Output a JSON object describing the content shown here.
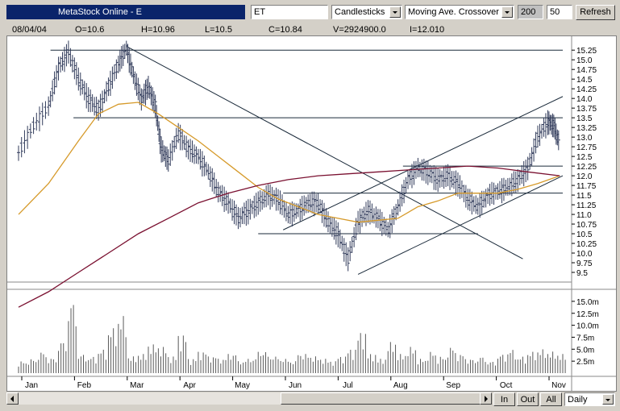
{
  "toolbar": {
    "title": "MetaStock Online - E",
    "symbol": "ET",
    "chart_style": "Candlesticks",
    "indicator": "Moving Ave. Crossover",
    "param1": "200",
    "param2": "50",
    "refresh_label": "Refresh"
  },
  "ohlc": {
    "date": "08/04/04",
    "open": "O=10.6",
    "high": "H=10.96",
    "low": "L=10.5",
    "close": "C=10.84",
    "volume": "V=2924900.0",
    "indicator": "I=12.010"
  },
  "bottom": {
    "in_label": "In",
    "out_label": "Out",
    "all_label": "All",
    "period": "Daily"
  },
  "colors": {
    "ma_short": "#d69a2a",
    "ma_long": "#7a1030",
    "candles": "#303a5a",
    "trendlines": "#1a2a3a"
  },
  "chart_data": {
    "type": "line",
    "price_axis": {
      "ylim": [
        9.25,
        15.4
      ],
      "ticks": [
        "15.25",
        "15.0",
        "14.75",
        "14.5",
        "14.25",
        "14.0",
        "13.75",
        "13.5",
        "13.25",
        "13.0",
        "12.75",
        "12.5",
        "12.25",
        "12.0",
        "11.75",
        "11.5",
        "11.25",
        "11.0",
        "10.75",
        "10.5",
        "10.25",
        "10.0",
        "9.75",
        "9.5"
      ]
    },
    "volume_axis": {
      "ylim": [
        0,
        16500000
      ],
      "ticks": [
        "15.0m",
        "12.5m",
        "10.0m",
        "7.5m",
        "5.0m",
        "2.5m"
      ]
    },
    "months": [
      "Jan",
      "Feb",
      "Mar",
      "Apr",
      "May",
      "Jun",
      "Jul",
      "Aug",
      "Sep",
      "Oct",
      "Nov"
    ],
    "series": [
      {
        "style": "ohlc-bars",
        "points": [
          [
            0,
            12.6
          ],
          [
            1.5,
            13.3
          ],
          [
            3,
            13.8
          ],
          [
            4,
            14.8
          ],
          [
            5,
            15.2
          ],
          [
            6,
            14.5
          ],
          [
            7,
            14.0
          ],
          [
            8,
            13.7
          ],
          [
            9,
            14.3
          ],
          [
            10,
            14.9
          ],
          [
            10.8,
            15.3
          ],
          [
            11.5,
            14.6
          ],
          [
            12.3,
            14.0
          ],
          [
            13,
            14.3
          ],
          [
            13.7,
            13.8
          ],
          [
            14.3,
            12.7
          ],
          [
            15,
            12.4
          ],
          [
            16,
            13.1
          ],
          [
            17,
            12.7
          ],
          [
            18,
            12.5
          ],
          [
            19,
            12.1
          ],
          [
            20,
            11.6
          ],
          [
            21,
            11.3
          ],
          [
            22,
            10.9
          ],
          [
            23,
            11.1
          ],
          [
            24,
            11.3
          ],
          [
            25,
            11.5
          ],
          [
            26,
            11.4
          ],
          [
            27,
            11.0
          ],
          [
            28,
            11.1
          ],
          [
            29,
            11.3
          ],
          [
            30,
            11.3
          ],
          [
            31,
            10.8
          ],
          [
            32,
            10.5
          ],
          [
            33,
            9.85
          ],
          [
            34,
            10.8
          ],
          [
            35,
            11.1
          ],
          [
            36,
            10.9
          ],
          [
            37,
            10.6
          ],
          [
            38,
            11.2
          ],
          [
            39,
            11.9
          ],
          [
            40,
            12.2
          ],
          [
            41,
            12.1
          ],
          [
            42,
            11.9
          ],
          [
            43,
            12.0
          ],
          [
            44,
            11.8
          ],
          [
            45,
            11.4
          ],
          [
            46,
            11.2
          ],
          [
            47,
            11.5
          ],
          [
            48,
            11.6
          ],
          [
            49,
            11.7
          ],
          [
            50,
            11.9
          ],
          [
            51,
            12.2
          ],
          [
            52,
            13.0
          ],
          [
            53,
            13.4
          ],
          [
            53.6,
            13.3
          ],
          [
            54.2,
            12.8
          ]
        ]
      },
      {
        "name": "",
        "style": "moving-average-short",
        "points": [
          [
            0,
            11.0
          ],
          [
            3,
            11.8
          ],
          [
            6,
            12.9
          ],
          [
            8,
            13.6
          ],
          [
            10,
            13.85
          ],
          [
            12,
            13.9
          ],
          [
            14,
            13.6
          ],
          [
            16,
            13.25
          ],
          [
            18,
            12.9
          ],
          [
            20,
            12.5
          ],
          [
            22,
            12.1
          ],
          [
            24,
            11.7
          ],
          [
            26,
            11.4
          ],
          [
            28,
            11.2
          ],
          [
            30,
            11.0
          ],
          [
            32,
            10.9
          ],
          [
            34,
            10.8
          ],
          [
            36,
            10.85
          ],
          [
            38,
            10.9
          ],
          [
            40,
            11.2
          ],
          [
            42,
            11.35
          ],
          [
            44,
            11.55
          ],
          [
            46,
            11.55
          ],
          [
            48,
            11.55
          ],
          [
            50,
            11.65
          ],
          [
            52,
            11.8
          ],
          [
            54.2,
            12.0
          ]
        ]
      },
      {
        "name": "",
        "style": "moving-average-long",
        "points": [
          [
            0,
            8.6
          ],
          [
            3,
            9.0
          ],
          [
            6,
            9.5
          ],
          [
            9,
            10.0
          ],
          [
            12,
            10.5
          ],
          [
            15,
            10.9
          ],
          [
            18,
            11.3
          ],
          [
            21,
            11.55
          ],
          [
            24,
            11.75
          ],
          [
            27,
            11.9
          ],
          [
            30,
            12.0
          ],
          [
            33,
            12.05
          ],
          [
            36,
            12.1
          ],
          [
            39,
            12.15
          ],
          [
            42,
            12.2
          ],
          [
            45,
            12.25
          ],
          [
            48,
            12.2
          ],
          [
            51,
            12.1
          ],
          [
            54.2,
            12.0
          ]
        ]
      }
    ],
    "volume": [
      [
        0,
        2.5
      ],
      [
        1,
        3.0
      ],
      [
        2,
        4.5
      ],
      [
        3,
        3.2
      ],
      [
        4,
        6.8
      ],
      [
        5,
        15.2
      ],
      [
        6,
        4.0
      ],
      [
        7,
        3.5
      ],
      [
        8,
        5.0
      ],
      [
        9,
        9.5
      ],
      [
        10,
        12.0
      ],
      [
        11,
        3.5
      ],
      [
        12,
        4.0
      ],
      [
        13,
        6.0
      ],
      [
        14,
        5.5
      ],
      [
        15,
        3.5
      ],
      [
        16,
        8.0
      ],
      [
        17,
        3.0
      ],
      [
        18,
        4.5
      ],
      [
        19,
        3.5
      ],
      [
        20,
        3.0
      ],
      [
        21,
        4.0
      ],
      [
        22,
        2.5
      ],
      [
        23,
        3.0
      ],
      [
        24,
        4.5
      ],
      [
        25,
        3.5
      ],
      [
        26,
        3.0
      ],
      [
        27,
        2.5
      ],
      [
        28,
        4.0
      ],
      [
        29,
        3.5
      ],
      [
        30,
        3.0
      ],
      [
        31,
        2.5
      ],
      [
        32,
        3.5
      ],
      [
        33,
        5.0
      ],
      [
        34,
        8.5
      ],
      [
        35,
        4.0
      ],
      [
        36,
        3.0
      ],
      [
        37,
        6.5
      ],
      [
        38,
        4.0
      ],
      [
        39,
        5.5
      ],
      [
        40,
        3.0
      ],
      [
        41,
        4.5
      ],
      [
        42,
        3.5
      ],
      [
        43,
        5.5
      ],
      [
        44,
        4.0
      ],
      [
        45,
        3.0
      ],
      [
        46,
        3.5
      ],
      [
        47,
        2.5
      ],
      [
        48,
        4.0
      ],
      [
        49,
        5.0
      ],
      [
        50,
        3.5
      ],
      [
        51,
        4.5
      ],
      [
        52,
        5.0
      ],
      [
        53,
        4.5
      ],
      [
        54,
        4.0
      ]
    ]
  }
}
